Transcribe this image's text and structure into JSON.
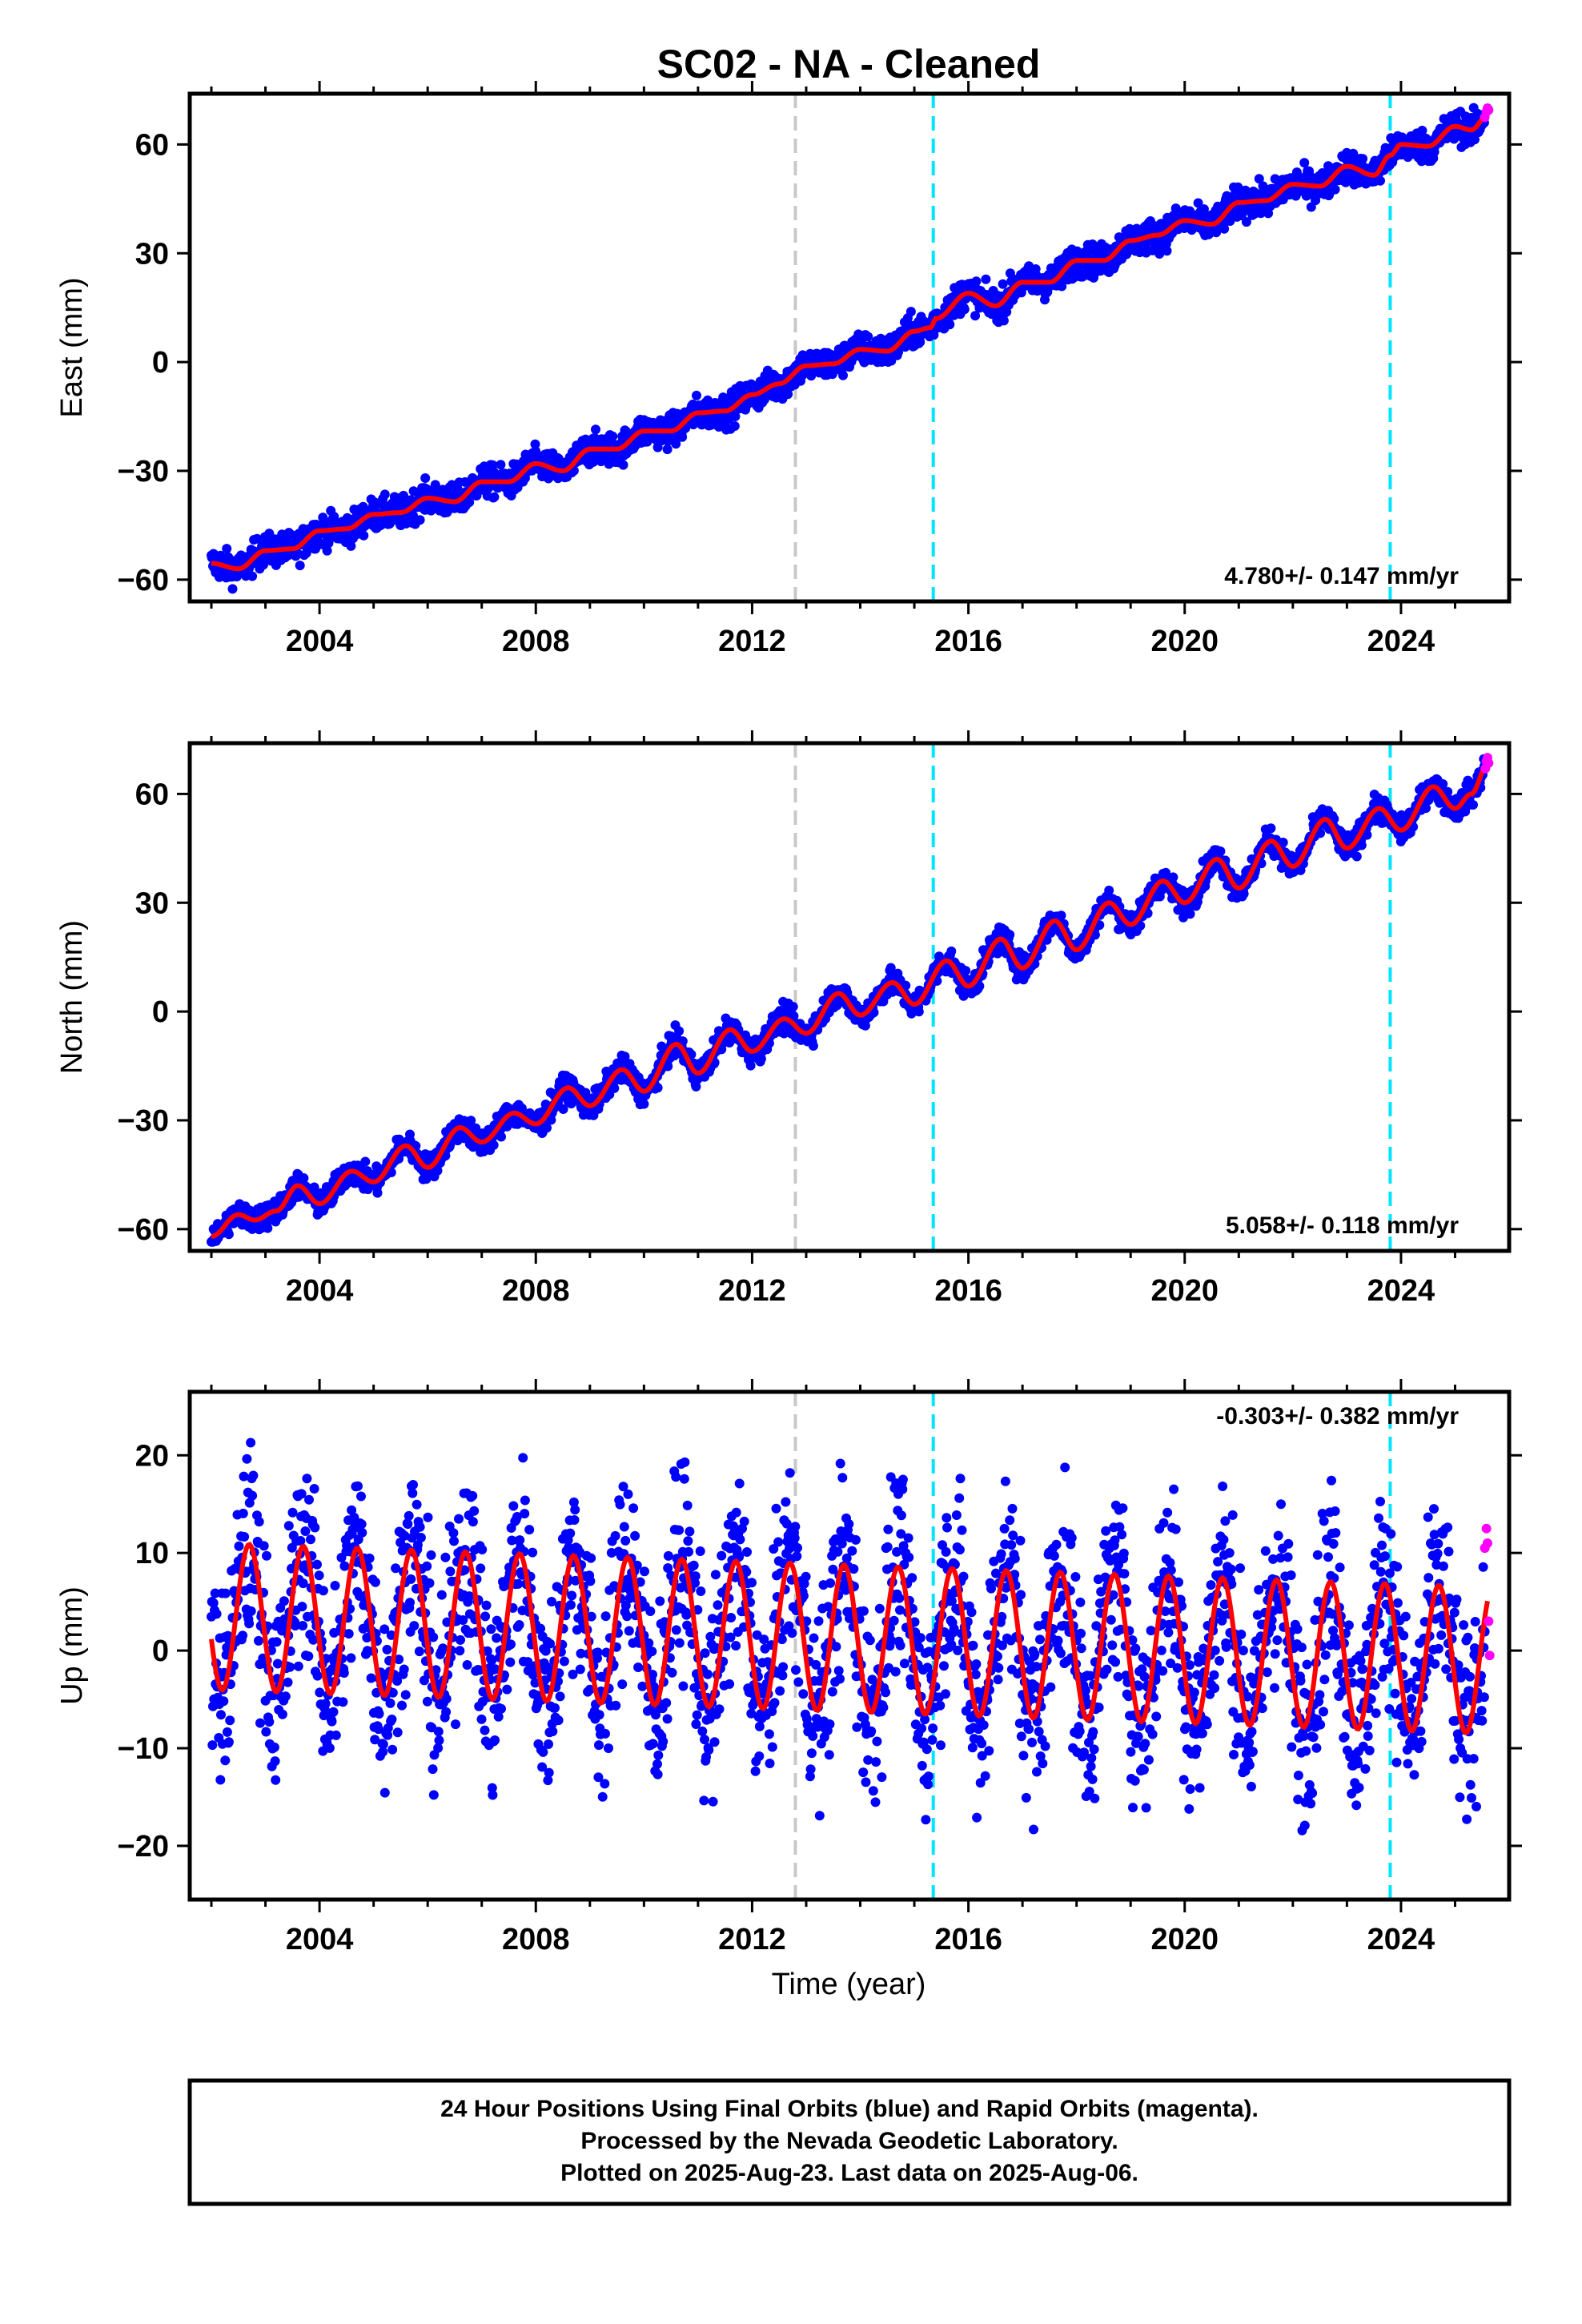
{
  "title": "SC02  - NA - Cleaned",
  "colors": {
    "final_orbits": "#0000ff",
    "rapid_orbits": "#ff00ff",
    "model": "#ff0000",
    "equipment_change": "#c8c8c8",
    "event": "#00e5ff"
  },
  "chart_data": [
    {
      "type": "scatter",
      "panel": "east",
      "ylabel": "East (mm)",
      "xlim": [
        2001.6,
        2026.0
      ],
      "ylim": [
        -66,
        74
      ],
      "xticks": [
        "2004",
        "2008",
        "2012",
        "2016",
        "2020",
        "2024"
      ],
      "yticks": [
        "60",
        "30",
        "0",
        "−30",
        "−60"
      ],
      "rate": "4.780+/- 0.147 mm/yr",
      "vertical_lines": [
        {
          "x": 2012.8,
          "style": "gray-dashed"
        },
        {
          "x": 2015.35,
          "style": "cyan-dashed"
        },
        {
          "x": 2023.8,
          "style": "cyan-dashed"
        }
      ],
      "model_points": [
        [
          2002.0,
          -55.5
        ],
        [
          2002.5,
          -57.0
        ],
        [
          2003.0,
          -52.0
        ],
        [
          2003.5,
          -51.5
        ],
        [
          2004.0,
          -46.5
        ],
        [
          2004.5,
          -46.0
        ],
        [
          2005.0,
          -42.0
        ],
        [
          2005.5,
          -41.5
        ],
        [
          2006.0,
          -37.5
        ],
        [
          2006.5,
          -38.5
        ],
        [
          2007.0,
          -33.0
        ],
        [
          2007.5,
          -33.0
        ],
        [
          2008.0,
          -28.0
        ],
        [
          2008.5,
          -30.0
        ],
        [
          2009.0,
          -24.0
        ],
        [
          2009.5,
          -24.0
        ],
        [
          2010.0,
          -19.0
        ],
        [
          2010.5,
          -19.0
        ],
        [
          2011.0,
          -14.0
        ],
        [
          2011.5,
          -13.5
        ],
        [
          2012.0,
          -9.0
        ],
        [
          2012.5,
          -6.0
        ],
        [
          2013.0,
          -1.0
        ],
        [
          2013.5,
          -0.5
        ],
        [
          2014.0,
          3.5
        ],
        [
          2014.5,
          3.0
        ],
        [
          2015.0,
          8.5
        ],
        [
          2015.3,
          9.5
        ],
        [
          2015.4,
          12.0
        ],
        [
          2016.0,
          19.0
        ],
        [
          2016.5,
          15.5
        ],
        [
          2017.0,
          22.0
        ],
        [
          2017.5,
          22.0
        ],
        [
          2018.0,
          28.0
        ],
        [
          2018.5,
          28.0
        ],
        [
          2019.0,
          33.5
        ],
        [
          2019.5,
          35.0
        ],
        [
          2020.0,
          39.0
        ],
        [
          2020.5,
          38.0
        ],
        [
          2021.0,
          44.0
        ],
        [
          2021.5,
          44.5
        ],
        [
          2022.0,
          49.0
        ],
        [
          2022.5,
          48.5
        ],
        [
          2023.0,
          54.0
        ],
        [
          2023.5,
          51.5
        ],
        [
          2023.8,
          57.0
        ],
        [
          2024.0,
          60.0
        ],
        [
          2024.5,
          59.5
        ],
        [
          2025.0,
          65.0
        ],
        [
          2025.3,
          64.0
        ],
        [
          2025.6,
          68.0
        ]
      ],
      "scatter_spread_mm": 2.2,
      "rapid_points": [
        [
          2025.55,
          67.5
        ],
        [
          2025.58,
          69.0
        ],
        [
          2025.6,
          70.0
        ],
        [
          2025.62,
          69.5
        ]
      ]
    },
    {
      "type": "scatter",
      "panel": "north",
      "ylabel": "North (mm)",
      "xlim": [
        2001.6,
        2026.0
      ],
      "ylim": [
        -66,
        74
      ],
      "xticks": [
        "2004",
        "2008",
        "2012",
        "2016",
        "2020",
        "2024"
      ],
      "yticks": [
        "60",
        "30",
        "0",
        "−30",
        "−60"
      ],
      "rate": "5.058+/- 0.118 mm/yr",
      "vertical_lines": [
        {
          "x": 2012.8,
          "style": "gray-dashed"
        },
        {
          "x": 2015.35,
          "style": "cyan-dashed"
        },
        {
          "x": 2023.8,
          "style": "cyan-dashed"
        }
      ],
      "model_points": [
        [
          2002.0,
          -62.0
        ],
        [
          2002.5,
          -56.0
        ],
        [
          2002.8,
          -57.5
        ],
        [
          2003.2,
          -55.0
        ],
        [
          2003.6,
          -48.0
        ],
        [
          2004.0,
          -53.0
        ],
        [
          2004.6,
          -44.0
        ],
        [
          2005.0,
          -47.0
        ],
        [
          2005.6,
          -37.0
        ],
        [
          2006.0,
          -43.0
        ],
        [
          2006.6,
          -32.0
        ],
        [
          2007.0,
          -36.0
        ],
        [
          2007.6,
          -28.0
        ],
        [
          2008.0,
          -31.0
        ],
        [
          2008.6,
          -21.0
        ],
        [
          2009.0,
          -26.0
        ],
        [
          2009.6,
          -16.0
        ],
        [
          2010.0,
          -22.0
        ],
        [
          2010.6,
          -9.0
        ],
        [
          2011.0,
          -17.0
        ],
        [
          2011.6,
          -5.0
        ],
        [
          2012.0,
          -11.0
        ],
        [
          2012.6,
          -2.0
        ],
        [
          2013.0,
          -6.0
        ],
        [
          2013.6,
          5.0
        ],
        [
          2014.0,
          -1.0
        ],
        [
          2014.6,
          8.0
        ],
        [
          2015.0,
          2.0
        ],
        [
          2015.6,
          14.0
        ],
        [
          2016.0,
          7.0
        ],
        [
          2016.6,
          20.0
        ],
        [
          2017.0,
          12.0
        ],
        [
          2017.6,
          25.0
        ],
        [
          2018.0,
          17.0
        ],
        [
          2018.6,
          30.0
        ],
        [
          2019.0,
          24.0
        ],
        [
          2019.6,
          36.0
        ],
        [
          2020.0,
          30.0
        ],
        [
          2020.6,
          42.0
        ],
        [
          2021.0,
          34.0
        ],
        [
          2021.6,
          47.0
        ],
        [
          2022.0,
          40.0
        ],
        [
          2022.6,
          53.0
        ],
        [
          2023.0,
          45.0
        ],
        [
          2023.6,
          56.0
        ],
        [
          2024.0,
          50.0
        ],
        [
          2024.6,
          62.0
        ],
        [
          2025.0,
          56.0
        ],
        [
          2025.3,
          60.0
        ],
        [
          2025.6,
          68.0
        ]
      ],
      "scatter_spread_mm": 1.8,
      "rapid_points": [
        [
          2025.56,
          67.0
        ],
        [
          2025.58,
          69.0
        ],
        [
          2025.6,
          70.0
        ],
        [
          2025.62,
          68.5
        ]
      ]
    },
    {
      "type": "scatter",
      "panel": "up",
      "ylabel": "Up (mm)",
      "xlabel": "Time (year)",
      "xlim": [
        2001.6,
        2026.0
      ],
      "ylim": [
        -25.5,
        26.5
      ],
      "xticks": [
        "2004",
        "2008",
        "2012",
        "2016",
        "2020",
        "2024"
      ],
      "yticks": [
        "20",
        "10",
        "0",
        "−10",
        "−20"
      ],
      "rate": "-0.303+/- 0.382 mm/yr",
      "vertical_lines": [
        {
          "x": 2012.8,
          "style": "gray-dashed"
        },
        {
          "x": 2015.35,
          "style": "cyan-dashed"
        },
        {
          "x": 2023.8,
          "style": "cyan-dashed"
        }
      ],
      "model": {
        "mean_start": 3.5,
        "mean_end": -1.0,
        "annual_amplitude_start": 7.5,
        "annual_amplitude_end": 7.5,
        "peak_phase_year_fraction": 0.7,
        "x_start": 2002.0,
        "x_end": 2025.6
      },
      "scatter_spread_mm": 5.0,
      "rapid_points": [
        [
          2025.55,
          10.5
        ],
        [
          2025.58,
          12.5
        ],
        [
          2025.6,
          11.0
        ],
        [
          2025.62,
          3.0
        ],
        [
          2025.64,
          -0.5
        ]
      ]
    }
  ],
  "footer": {
    "line1": "24 Hour Positions Using Final Orbits (blue) and Rapid Orbits (magenta).",
    "line2": "Processed by the Nevada Geodetic Laboratory.",
    "line3": "Plotted on 2025-Aug-23. Last data on 2025-Aug-06."
  }
}
